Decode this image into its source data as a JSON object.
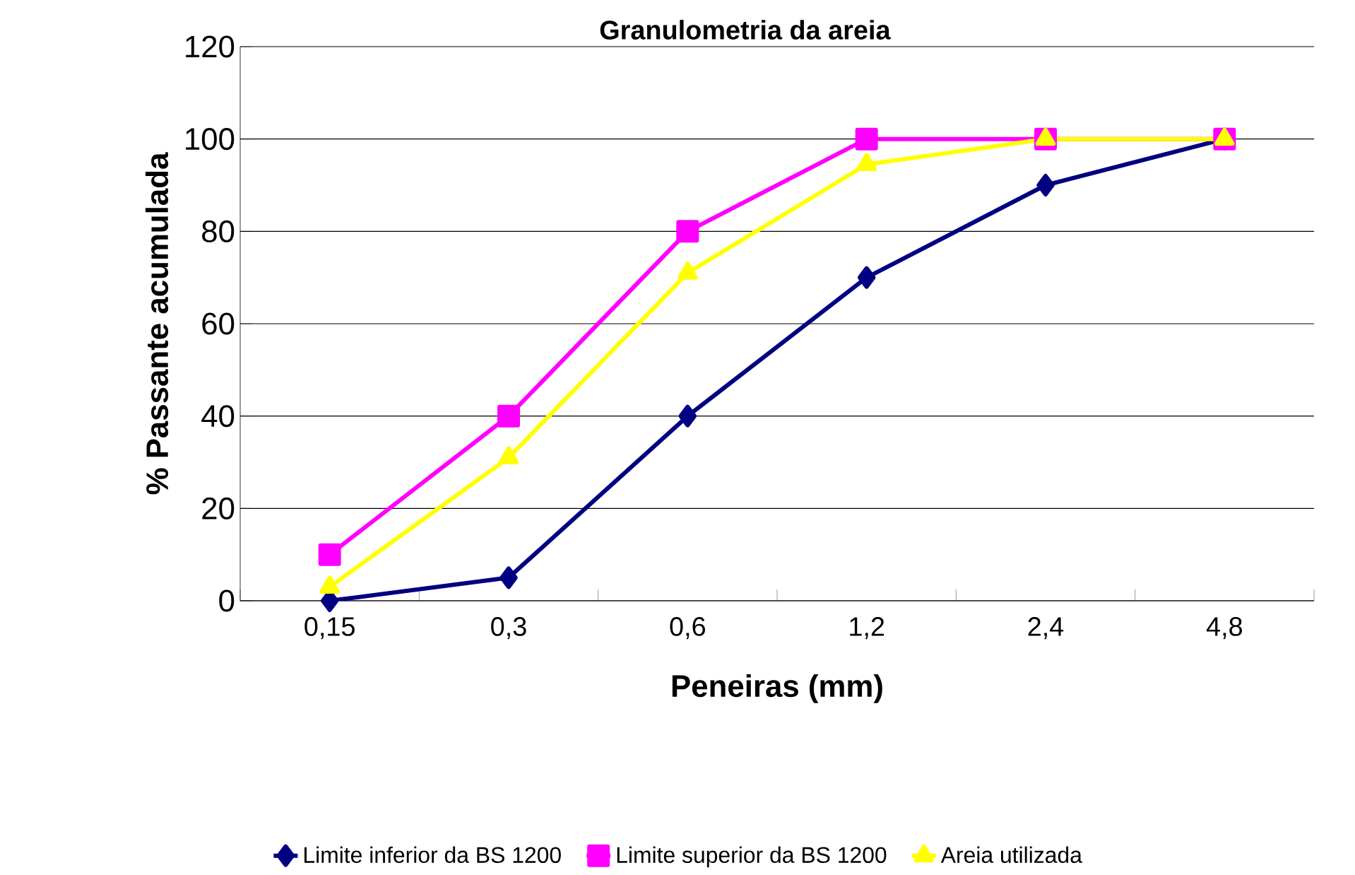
{
  "chart_data": {
    "type": "line",
    "title": "Granulometria da areia",
    "xlabel": "Peneiras (mm)",
    "ylabel": "% Passante acumulada",
    "categories": [
      "0,15",
      "0,3",
      "0,6",
      "1,2",
      "2,4",
      "4,8"
    ],
    "series": [
      {
        "name": "Limite inferior da BS 1200",
        "color": "#000080",
        "marker": "diamond",
        "values": [
          0,
          5,
          40,
          70,
          90,
          100
        ]
      },
      {
        "name": "Limite superior da BS 1200",
        "color": "#ff00ff",
        "marker": "square",
        "values": [
          10,
          40,
          80,
          100,
          100,
          100
        ]
      },
      {
        "name": "Areia utilizada",
        "color": "#ffff00",
        "marker": "triangle",
        "values": [
          3,
          31,
          71,
          94.5,
          100,
          100
        ]
      }
    ],
    "ylim": [
      0,
      120
    ],
    "yticks": [
      0,
      20,
      40,
      60,
      80,
      100,
      120
    ],
    "grid": "y",
    "legend": "bottom",
    "line_style": "solid"
  }
}
